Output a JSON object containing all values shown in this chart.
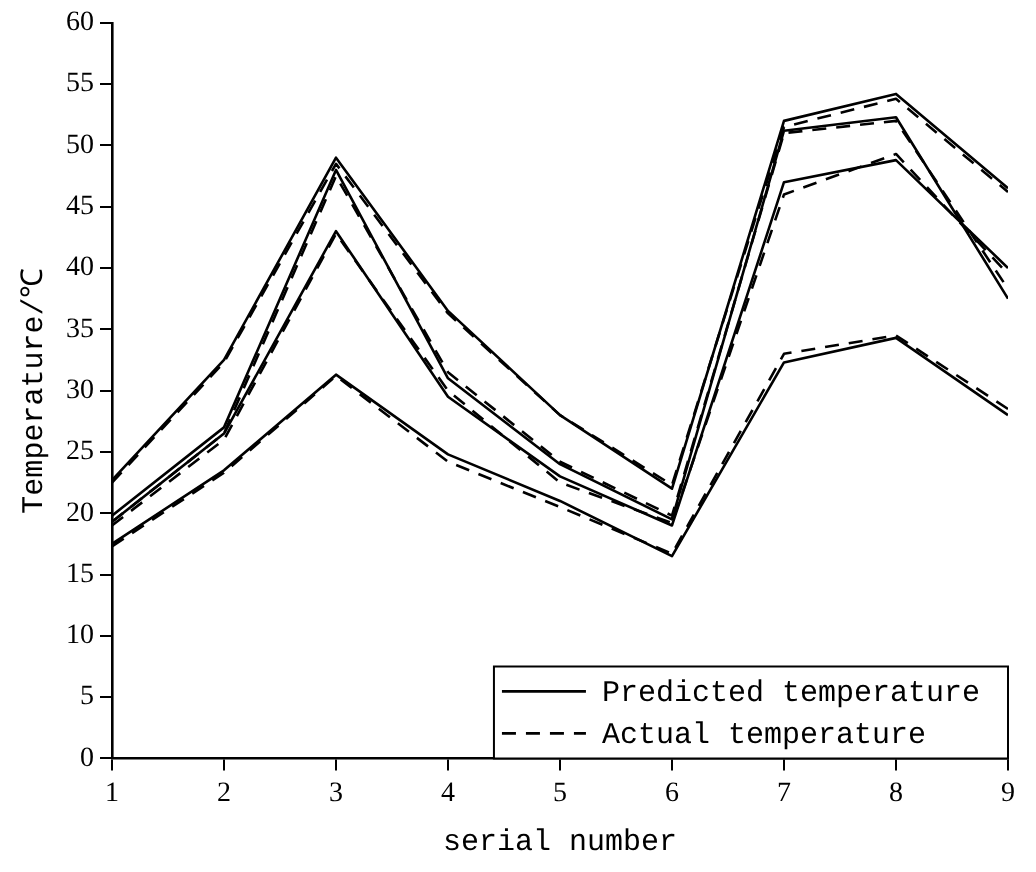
{
  "chart_data": {
    "type": "line",
    "xlabel": "serial number",
    "ylabel": "Temperature/℃",
    "x": [
      1,
      2,
      3,
      4,
      5,
      6,
      7,
      8,
      9
    ],
    "xlim": [
      1,
      9
    ],
    "xticks": [
      1,
      2,
      3,
      4,
      5,
      6,
      7,
      8,
      9
    ],
    "ylim": [
      0,
      60
    ],
    "yticks": [
      0,
      5,
      10,
      15,
      20,
      25,
      30,
      35,
      40,
      45,
      50,
      55,
      60
    ],
    "grid": false,
    "legend": "bottom right",
    "marker": "none",
    "series": [
      {
        "name": "Predicted temperature",
        "color": "#000000",
        "line_style": "solid",
        "values": [
          22.7,
          32.5,
          49,
          36.5,
          28,
          22,
          52,
          54.2,
          46.5
        ]
      },
      {
        "color": "#000000",
        "line_style": "solid",
        "values": [
          19.8,
          27,
          48,
          31,
          24,
          19.5,
          51.2,
          52.3,
          37.5
        ]
      },
      {
        "color": "#000000",
        "line_style": "solid",
        "values": [
          19.3,
          26.5,
          43,
          29.5,
          23,
          19,
          47,
          48.8,
          40
        ]
      },
      {
        "color": "#000000",
        "line_style": "solid",
        "values": [
          17.5,
          23.5,
          31.3,
          24.8,
          21,
          16.5,
          32.3,
          34.3,
          28
        ]
      },
      {
        "name": "Actual temperature",
        "color": "#000000",
        "line_style": "dashed",
        "values": [
          22.5,
          32.3,
          48.5,
          36.3,
          28,
          22.3,
          51.5,
          53.8,
          46.2
        ]
      },
      {
        "color": "#000000",
        "line_style": "dashed",
        "values": [
          19.3,
          26.5,
          47.5,
          31.5,
          24.2,
          19.8,
          51,
          52,
          38.3
        ]
      },
      {
        "color": "#000000",
        "line_style": "dashed",
        "values": [
          19,
          26,
          42.8,
          30,
          22.5,
          19.2,
          46,
          49.3,
          39.5
        ]
      },
      {
        "color": "#000000",
        "line_style": "dashed",
        "values": [
          17.3,
          23.3,
          31.2,
          24.2,
          20.5,
          16.7,
          33,
          34.5,
          28.5
        ]
      }
    ]
  }
}
